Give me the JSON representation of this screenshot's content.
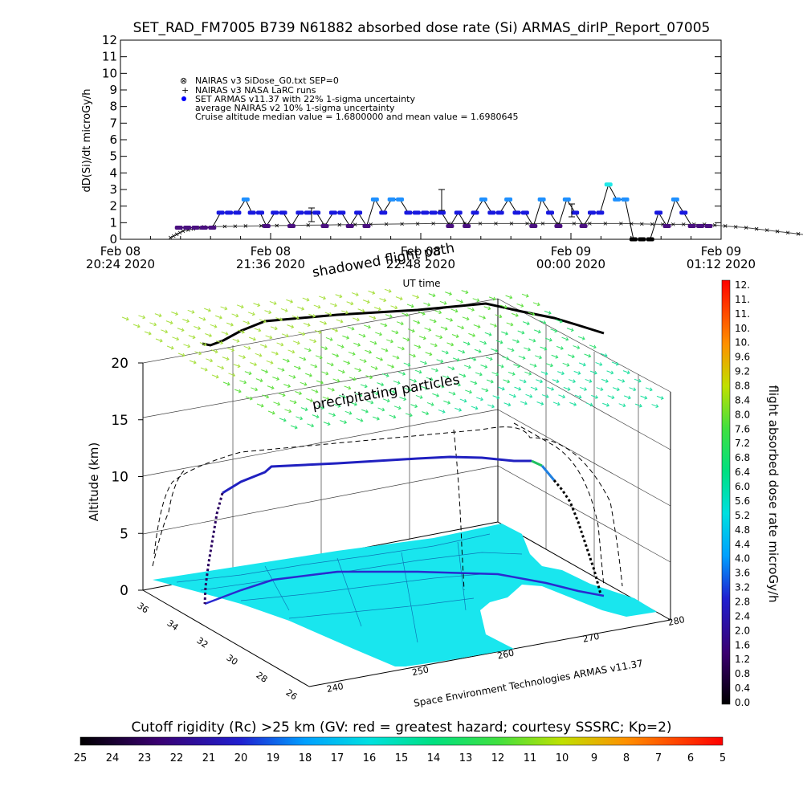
{
  "title": "SET_RAD_FM7005   B739 N61882 absorbed dose rate (Si) ARMAS_dirIP_Report_07005",
  "top_chart": {
    "y_label": "dD(Si)/dt microGy/h",
    "x_label": "UT time",
    "y_ticks": [
      "0",
      "1",
      "2",
      "3",
      "4",
      "5",
      "6",
      "7",
      "8",
      "9",
      "10",
      "11",
      "12"
    ],
    "x_ticks": [
      {
        "line1": "Feb 08",
        "line2": "20:24 2020"
      },
      {
        "line1": "Feb 08",
        "line2": "21:36 2020"
      },
      {
        "line1": "Feb 08",
        "line2": "22:48 2020"
      },
      {
        "line1": "Feb 09",
        "line2": "00:00 2020"
      },
      {
        "line1": "Feb 09",
        "line2": "01:12 2020"
      }
    ],
    "legend": [
      "NAIRAS v3 SiDose_G0.txt SEP=0",
      "NAIRAS v3 NASA LaRC runs",
      "SET ARMAS v11.37 with 22% 1-sigma uncertainty",
      "average NAIRAS v2 10% 1-sigma uncertainty",
      "Cruise altitude median value = 1.6800000 and mean value = 1.6980645"
    ]
  },
  "chart_data": {
    "type": "scatter",
    "title": "SET_RAD_FM7005   B739 N61882 absorbed dose rate (Si) ARMAS_dirIP_Report_07005",
    "xlabel": "UT time",
    "ylabel": "dD(Si)/dt microGy/h",
    "xlim_minutes_after_2024": [
      0,
      288
    ],
    "ylim": [
      0,
      12
    ],
    "series": [
      {
        "name": "SET ARMAS v11.37 with 22% 1-sigma uncertainty",
        "points": [
          [
            28,
            0.7
          ],
          [
            32,
            0.7
          ],
          [
            36,
            0.7
          ],
          [
            40,
            0.7
          ],
          [
            44,
            0.7
          ],
          [
            48,
            1.6
          ],
          [
            52,
            1.6
          ],
          [
            56,
            1.6
          ],
          [
            60,
            2.4
          ],
          [
            63,
            1.6
          ],
          [
            67,
            1.6
          ],
          [
            70,
            0.8
          ],
          [
            74,
            1.6
          ],
          [
            78,
            1.6
          ],
          [
            82,
            0.8
          ],
          [
            86,
            1.6
          ],
          [
            90,
            1.6
          ],
          [
            94,
            1.6
          ],
          [
            98,
            0.8
          ],
          [
            102,
            1.6
          ],
          [
            106,
            1.6
          ],
          [
            110,
            0.8
          ],
          [
            114,
            1.6
          ],
          [
            118,
            0.8
          ],
          [
            122,
            2.4
          ],
          [
            126,
            1.6
          ],
          [
            130,
            2.4
          ],
          [
            134,
            2.4
          ],
          [
            138,
            1.6
          ],
          [
            142,
            1.6
          ],
          [
            146,
            1.6
          ],
          [
            150,
            1.6
          ],
          [
            154,
            1.6
          ],
          [
            158,
            0.8
          ],
          [
            162,
            1.6
          ],
          [
            166,
            0.8
          ],
          [
            170,
            1.6
          ],
          [
            174,
            2.4
          ],
          [
            178,
            1.6
          ],
          [
            182,
            1.6
          ],
          [
            186,
            2.4
          ],
          [
            190,
            1.6
          ],
          [
            194,
            1.6
          ],
          [
            198,
            0.8
          ],
          [
            202,
            2.4
          ],
          [
            206,
            1.6
          ],
          [
            210,
            0.8
          ],
          [
            214,
            2.4
          ],
          [
            218,
            1.6
          ],
          [
            222,
            0.8
          ],
          [
            226,
            1.6
          ],
          [
            230,
            1.6
          ],
          [
            234,
            3.3
          ],
          [
            238,
            2.4
          ],
          [
            242,
            2.4
          ],
          [
            246,
            0
          ],
          [
            250,
            0
          ],
          [
            254,
            0
          ],
          [
            258,
            1.6
          ],
          [
            262,
            0.8
          ],
          [
            266,
            2.4
          ],
          [
            270,
            1.6
          ],
          [
            274,
            0.8
          ],
          [
            278,
            0.8
          ],
          [
            282,
            0.8
          ]
        ]
      },
      {
        "name": "NAIRAS v3 SiDose_G0.txt SEP=0",
        "points": [
          [
            24,
            0.1
          ],
          [
            30,
            0.5
          ],
          [
            40,
            0.75
          ],
          [
            60,
            0.8
          ],
          [
            90,
            0.85
          ],
          [
            120,
            0.9
          ],
          [
            150,
            0.95
          ],
          [
            180,
            0.95
          ],
          [
            210,
            0.95
          ],
          [
            240,
            0.95
          ],
          [
            260,
            0.9
          ],
          [
            280,
            0.9
          ],
          [
            300,
            0.7
          ],
          [
            320,
            0.4
          ],
          [
            340,
            0.1
          ]
        ]
      }
    ]
  },
  "scene3d": {
    "y_axis_label": "Altitude (km)",
    "y_ticks": [
      "0",
      "5",
      "10",
      "15",
      "20"
    ],
    "lat_ticks": [
      "36",
      "34",
      "32",
      "30",
      "28",
      "26"
    ],
    "lon_ticks": [
      "240",
      "250",
      "260",
      "270",
      "280"
    ],
    "annotations": {
      "shadowed": "shadowed flight path",
      "precip": "precipitating particles",
      "credit": "Space Environment Technologies ARMAS v11.37"
    }
  },
  "colorbar_right": {
    "label": "flight absorbed dose rate microGy/h",
    "ticks": [
      "12.",
      "11.",
      "11.",
      "10.",
      "10.",
      "9.6",
      "9.2",
      "8.8",
      "8.4",
      "8.0",
      "7.6",
      "7.2",
      "6.8",
      "6.4",
      "6.0",
      "5.6",
      "5.2",
      "4.8",
      "4.4",
      "4.0",
      "3.6",
      "3.2",
      "2.8",
      "2.4",
      "2.0",
      "1.6",
      "1.2",
      "0.8",
      "0.4",
      "0.0"
    ]
  },
  "colorbar_bottom": {
    "label": "Cutoff rigidity (Rc) >25 km (GV: red = greatest hazard; courtesy SSSRC; Kp=2)",
    "ticks": [
      "25",
      "24",
      "23",
      "22",
      "21",
      "20",
      "19",
      "18",
      "17",
      "16",
      "15",
      "14",
      "13",
      "12",
      "11",
      "10",
      "9",
      "8",
      "7",
      "6",
      "5"
    ]
  }
}
